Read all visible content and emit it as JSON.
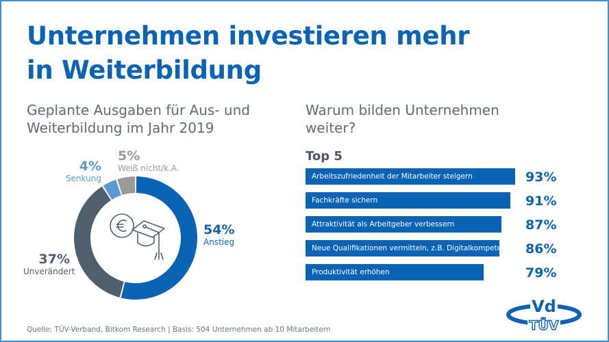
{
  "header": {
    "title_line1": "Unternehmen investieren mehr",
    "title_line2": "in Weiterbildung"
  },
  "left": {
    "subtitle_line1": "Geplante Ausgaben für Aus- und",
    "subtitle_line2": "Weiterbildung im Jahr 2019",
    "center_icon": "euro-graduation-cap-icon"
  },
  "right": {
    "subtitle_line1": "Warum bilden Unternehmen",
    "subtitle_line2": "weiter?",
    "top_label": "Top 5"
  },
  "colors": {
    "brand_blue": "#0a63b5",
    "slate": "#4f5f6d",
    "light_blue": "#5a9ad3",
    "gray": "#9a9a9a",
    "text_gray": "#5f6b76"
  },
  "chart_data": [
    {
      "type": "pie",
      "title": "Geplante Ausgaben für Aus- und Weiterbildung im Jahr 2019",
      "donut": true,
      "slices": [
        {
          "label": "Anstieg",
          "value": 54,
          "value_label": "54%",
          "color": "#0a63b5"
        },
        {
          "label": "Unverändert",
          "value": 37,
          "value_label": "37%",
          "color": "#4f5f6d"
        },
        {
          "label": "Senkung",
          "value": 4,
          "value_label": "4%",
          "color": "#5a9ad3"
        },
        {
          "label": "Weiß nicht/k.A.",
          "value": 5,
          "value_label": "5%",
          "color": "#9a9a9a"
        }
      ]
    },
    {
      "type": "bar",
      "orientation": "horizontal",
      "title": "Warum bilden Unternehmen weiter?",
      "subtitle": "Top 5",
      "categories": [
        "Arbeitszufriedenheit der Mitarbeiter steigern",
        "Fachkräfte sichern",
        "Attraktivität als Arbeitgeber verbessern",
        "Neue Qualifikationen vermitteln, z.B. Digitalkompetenz",
        "Produktivität erhöhen"
      ],
      "values": [
        93,
        91,
        87,
        86,
        79
      ],
      "value_labels": [
        "93%",
        "91%",
        "87%",
        "86%",
        "79%"
      ],
      "xlim": [
        0,
        100
      ]
    }
  ],
  "footer": {
    "source": "Quelle: TÜV-Verband, Bitkom Research | Basis: 504 Unternehmen ab 10 Mitarbeitern"
  },
  "logo": {
    "top": "Vd",
    "bottom": "TÜV"
  }
}
